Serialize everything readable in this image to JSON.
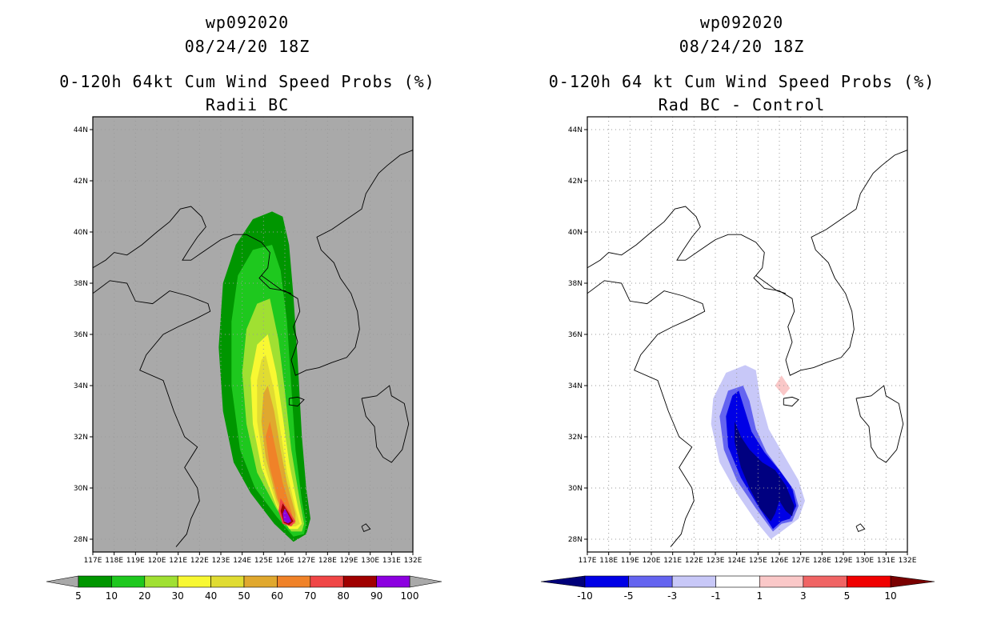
{
  "panels": [
    {
      "id": "left",
      "title_line1": "wp092020",
      "title_line2": "08/24/20 18Z",
      "title_line3": "0-120h 64kt Cum Wind Speed Probs (%)",
      "title_line4": "Radii BC",
      "background": "#a9a9a9",
      "colorbar": {
        "colors": [
          "#009600",
          "#1ec81e",
          "#a0e032",
          "#f8f832",
          "#e0dc32",
          "#e0a82e",
          "#f08228",
          "#f04646",
          "#a00000",
          "#8c00e0"
        ],
        "left_triangle": "#a9a9a9",
        "right_triangle": "#a9a9a9",
        "labels": [
          "5",
          "10",
          "20",
          "30",
          "40",
          "50",
          "60",
          "70",
          "80",
          "90",
          "100"
        ]
      }
    },
    {
      "id": "right",
      "title_line1": "wp092020",
      "title_line2": "08/24/20 18Z",
      "title_line3": "0-120h 64 kt Cum Wind Speed Probs (%)",
      "title_line4": "Rad BC - Control",
      "background": "#ffffff",
      "colorbar": {
        "colors": [
          "#0000e6",
          "#6464f0",
          "#c8c8f8",
          "#ffffff",
          "#fac8c8",
          "#f06464",
          "#f00000"
        ],
        "left_triangle": "#00007a",
        "right_triangle": "#7a0000",
        "labels": [
          "-10",
          "-5",
          "-3",
          "-1",
          "1",
          "3",
          "5",
          "10"
        ]
      }
    }
  ],
  "chart_data": [
    {
      "type": "heatmap",
      "title": "wp092020 08/24/20 18Z 0-120h 64kt Cum Wind Speed Probs (%) Radii BC",
      "x_axis": {
        "range": [
          117,
          132
        ],
        "ticks": [
          "117E",
          "118E",
          "119E",
          "120E",
          "121E",
          "122E",
          "123E",
          "124E",
          "125E",
          "126E",
          "127E",
          "128E",
          "129E",
          "130E",
          "131E",
          "132E"
        ]
      },
      "y_axis": {
        "range": [
          27.5,
          44.5
        ],
        "ticks": [
          "28N",
          "30N",
          "32N",
          "34N",
          "36N",
          "38N",
          "40N",
          "42N",
          "44N"
        ]
      },
      "levels": [
        5,
        10,
        20,
        30,
        40,
        50,
        60,
        70,
        80,
        90,
        100
      ],
      "contours": [
        {
          "level": 5,
          "color": "#009600",
          "points": [
            [
              125.4,
              40.8
            ],
            [
              125.9,
              40.6
            ],
            [
              126.2,
              39.5
            ],
            [
              126.4,
              37.5
            ],
            [
              126.6,
              35.0
            ],
            [
              126.8,
              32.0
            ],
            [
              127.0,
              30.0
            ],
            [
              127.2,
              28.8
            ],
            [
              127.0,
              28.2
            ],
            [
              126.4,
              27.9
            ],
            [
              125.5,
              28.6
            ],
            [
              124.4,
              29.8
            ],
            [
              123.6,
              31.0
            ],
            [
              123.1,
              33.0
            ],
            [
              122.9,
              35.5
            ],
            [
              123.1,
              38.0
            ],
            [
              123.7,
              39.5
            ],
            [
              124.5,
              40.5
            ]
          ]
        },
        {
          "level": 10,
          "color": "#1ec81e",
          "points": [
            [
              125.4,
              39.5
            ],
            [
              125.8,
              38.5
            ],
            [
              126.1,
              36.5
            ],
            [
              126.3,
              34.0
            ],
            [
              126.5,
              31.5
            ],
            [
              126.8,
              29.5
            ],
            [
              127.0,
              28.6
            ],
            [
              126.9,
              28.2
            ],
            [
              126.4,
              28.1
            ],
            [
              125.6,
              28.9
            ],
            [
              124.6,
              30.0
            ],
            [
              123.9,
              31.5
            ],
            [
              123.5,
              34.0
            ],
            [
              123.5,
              36.5
            ],
            [
              123.8,
              38.3
            ],
            [
              124.5,
              39.3
            ]
          ]
        },
        {
          "level": 20,
          "color": "#a0e032",
          "points": [
            [
              125.3,
              37.4
            ],
            [
              125.7,
              35.8
            ],
            [
              126.0,
              33.8
            ],
            [
              126.3,
              31.5
            ],
            [
              126.7,
              29.5
            ],
            [
              126.9,
              28.6
            ],
            [
              126.8,
              28.3
            ],
            [
              126.3,
              28.3
            ],
            [
              125.6,
              29.2
            ],
            [
              124.7,
              30.6
            ],
            [
              124.2,
              32.5
            ],
            [
              124.0,
              34.5
            ],
            [
              124.2,
              36.2
            ],
            [
              124.7,
              37.2
            ]
          ]
        },
        {
          "level": 30,
          "color": "#f8f832",
          "points": [
            [
              125.2,
              36.0
            ],
            [
              125.6,
              34.5
            ],
            [
              125.9,
              32.8
            ],
            [
              126.2,
              31.0
            ],
            [
              126.6,
              29.3
            ],
            [
              126.8,
              28.6
            ],
            [
              126.6,
              28.4
            ],
            [
              126.2,
              28.4
            ],
            [
              125.6,
              29.3
            ],
            [
              124.9,
              30.8
            ],
            [
              124.5,
              32.5
            ],
            [
              124.4,
              34.3
            ],
            [
              124.7,
              35.6
            ]
          ]
        },
        {
          "level": 40,
          "color": "#e0dc32",
          "points": [
            [
              125.1,
              35.2
            ],
            [
              125.5,
              33.8
            ],
            [
              125.8,
              32.2
            ],
            [
              126.1,
              30.6
            ],
            [
              126.5,
              29.2
            ],
            [
              126.7,
              28.6
            ],
            [
              126.5,
              28.5
            ],
            [
              126.1,
              28.5
            ],
            [
              125.6,
              29.4
            ],
            [
              125.0,
              31.0
            ],
            [
              124.7,
              32.6
            ],
            [
              124.7,
              34.2
            ],
            [
              124.9,
              35.0
            ]
          ]
        },
        {
          "level": 50,
          "color": "#e0a82e",
          "points": [
            [
              125.2,
              34.0
            ],
            [
              125.5,
              33.0
            ],
            [
              125.8,
              31.5
            ],
            [
              126.1,
              30.2
            ],
            [
              126.5,
              29.0
            ],
            [
              126.5,
              28.6
            ],
            [
              126.1,
              28.6
            ],
            [
              125.6,
              29.6
            ],
            [
              125.1,
              31.2
            ],
            [
              124.9,
              32.6
            ],
            [
              125.0,
              33.7
            ]
          ]
        },
        {
          "level": 60,
          "color": "#f08228",
          "points": [
            [
              125.3,
              32.6
            ],
            [
              125.6,
              31.4
            ],
            [
              125.9,
              30.2
            ],
            [
              126.3,
              29.1
            ],
            [
              126.4,
              28.7
            ],
            [
              126.1,
              28.7
            ],
            [
              125.7,
              29.5
            ],
            [
              125.3,
              30.8
            ],
            [
              125.1,
              32.0
            ]
          ]
        },
        {
          "level": 70,
          "color": "#f04646",
          "points": [
            [
              125.8,
              29.6
            ],
            [
              126.2,
              29.1
            ],
            [
              126.5,
              28.7
            ],
            [
              126.3,
              28.5
            ],
            [
              125.9,
              28.6
            ],
            [
              125.7,
              29.1
            ]
          ]
        },
        {
          "level": 80,
          "color": "#a00000",
          "points": [
            [
              125.9,
              29.4
            ],
            [
              126.2,
              29.0
            ],
            [
              126.4,
              28.7
            ],
            [
              126.2,
              28.55
            ],
            [
              125.95,
              28.65
            ],
            [
              125.8,
              29.1
            ]
          ]
        },
        {
          "level": 90,
          "color": "#8c00e0",
          "points": [
            [
              126.0,
              29.2
            ],
            [
              126.2,
              28.9
            ],
            [
              126.3,
              28.7
            ],
            [
              126.15,
              28.62
            ],
            [
              125.95,
              28.7
            ],
            [
              125.9,
              29.0
            ]
          ]
        }
      ]
    },
    {
      "type": "heatmap",
      "title": "wp092020 08/24/20 18Z 0-120h 64 kt Cum Wind Speed Probs (%) Rad BC - Control",
      "x_axis": {
        "range": [
          117,
          132
        ],
        "ticks": [
          "117E",
          "118E",
          "119E",
          "120E",
          "121E",
          "122E",
          "123E",
          "124E",
          "125E",
          "126E",
          "127E",
          "128E",
          "129E",
          "130E",
          "131E",
          "132E"
        ]
      },
      "y_axis": {
        "range": [
          27.5,
          44.5
        ],
        "ticks": [
          "28N",
          "30N",
          "32N",
          "34N",
          "36N",
          "38N",
          "40N",
          "42N",
          "44N"
        ]
      },
      "levels": [
        -10,
        -5,
        -3,
        -1,
        1,
        3,
        5,
        10
      ],
      "contours": [
        {
          "level": -1,
          "color": "#c8c8f8",
          "points": [
            [
              124.4,
              34.8
            ],
            [
              124.9,
              34.6
            ],
            [
              125.1,
              33.5
            ],
            [
              125.5,
              32.3
            ],
            [
              126.2,
              31.3
            ],
            [
              126.9,
              30.3
            ],
            [
              127.2,
              29.5
            ],
            [
              126.9,
              28.8
            ],
            [
              126.1,
              28.3
            ],
            [
              125.6,
              28.0
            ],
            [
              124.9,
              28.7
            ],
            [
              124.0,
              29.8
            ],
            [
              123.2,
              31.0
            ],
            [
              122.8,
              32.5
            ],
            [
              122.9,
              33.5
            ],
            [
              123.5,
              34.5
            ]
          ]
        },
        {
          "level": -3,
          "color": "#6464f0",
          "points": [
            [
              124.3,
              34.0
            ],
            [
              124.6,
              33.4
            ],
            [
              124.9,
              32.3
            ],
            [
              125.4,
              31.4
            ],
            [
              126.1,
              30.6
            ],
            [
              126.7,
              29.9
            ],
            [
              126.9,
              29.3
            ],
            [
              126.6,
              28.7
            ],
            [
              126.1,
              28.6
            ],
            [
              125.7,
              28.3
            ],
            [
              124.9,
              29.2
            ],
            [
              124.0,
              30.3
            ],
            [
              123.4,
              31.5
            ],
            [
              123.2,
              32.8
            ],
            [
              123.6,
              33.8
            ]
          ]
        },
        {
          "level": -5,
          "color": "#0000e6",
          "points": [
            [
              124.1,
              33.8
            ],
            [
              124.4,
              33.0
            ],
            [
              124.7,
              32.2
            ],
            [
              125.3,
              31.4
            ],
            [
              126.0,
              30.7
            ],
            [
              126.6,
              30.0
            ],
            [
              126.8,
              29.3
            ],
            [
              126.5,
              28.8
            ],
            [
              126.1,
              28.7
            ],
            [
              125.7,
              28.4
            ],
            [
              125.0,
              29.3
            ],
            [
              124.2,
              30.4
            ],
            [
              123.6,
              31.6
            ],
            [
              123.5,
              32.8
            ],
            [
              123.8,
              33.6
            ]
          ]
        },
        {
          "level": -10,
          "color": "#000080",
          "points": [
            [
              123.9,
              32.6
            ],
            [
              124.2,
              32.0
            ],
            [
              124.6,
              31.5
            ],
            [
              125.2,
              31.0
            ],
            [
              125.8,
              30.7
            ],
            [
              126.3,
              30.1
            ],
            [
              126.7,
              29.3
            ],
            [
              126.6,
              28.9
            ],
            [
              126.3,
              29.1
            ],
            [
              126.0,
              29.5
            ],
            [
              125.8,
              29.0
            ],
            [
              125.6,
              28.7
            ],
            [
              125.1,
              29.2
            ],
            [
              124.6,
              30.0
            ],
            [
              124.2,
              30.8
            ],
            [
              123.9,
              31.8
            ]
          ]
        },
        {
          "level": 1,
          "color": "#fac8c8",
          "points": [
            [
              126.1,
              34.4
            ],
            [
              126.5,
              33.9
            ],
            [
              126.2,
              33.6
            ],
            [
              125.8,
              34.0
            ]
          ]
        }
      ]
    }
  ]
}
